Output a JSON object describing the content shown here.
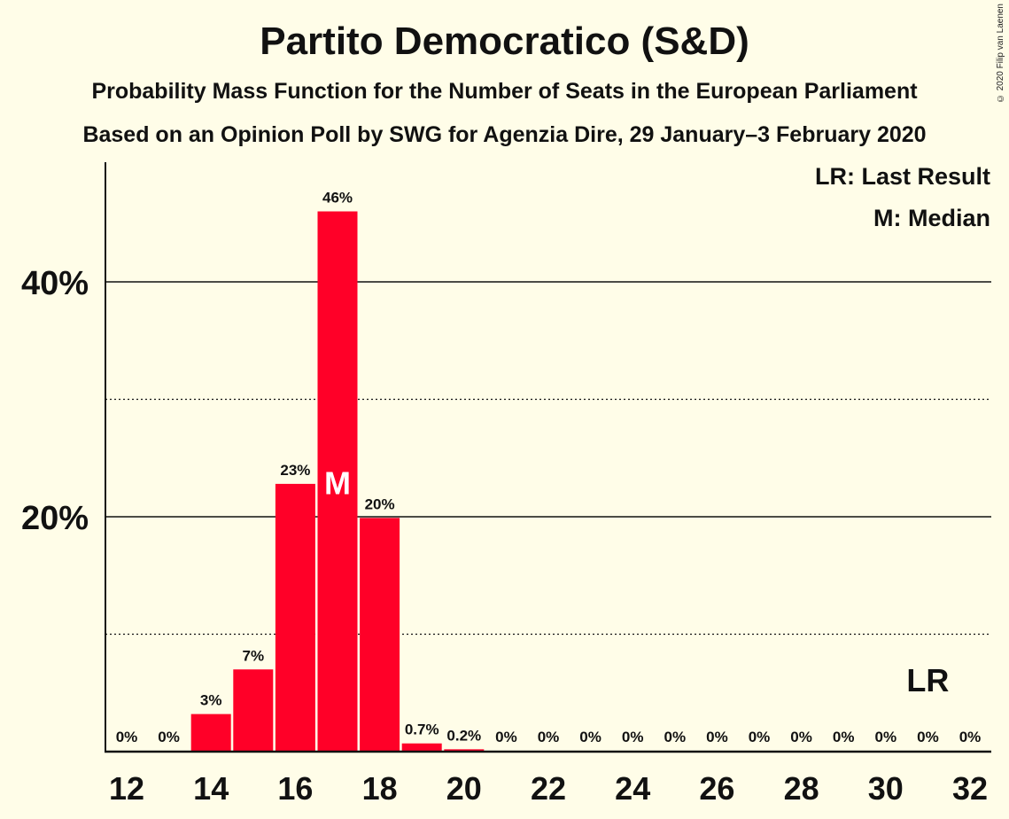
{
  "title": "Partito Democratico (S&D)",
  "subtitle1": "Probability Mass Function for the Number of Seats in the European Parliament",
  "subtitle2": "Based on an Opinion Poll by SWG for Agenzia Dire, 29 January–3 February 2020",
  "copyright": "© 2020 Filip van Laenen",
  "legend": {
    "last_result": "LR: Last Result",
    "median": "M: Median"
  },
  "colors": {
    "bar": "#FF0028",
    "background": "#FFFDE8",
    "axis": "#111111"
  },
  "chart_data": {
    "type": "bar",
    "x": [
      12,
      13,
      14,
      15,
      16,
      17,
      18,
      19,
      20,
      21,
      22,
      23,
      24,
      25,
      26,
      27,
      28,
      29,
      30,
      31,
      32
    ],
    "values": [
      0,
      0,
      3.2,
      7.0,
      22.8,
      46.0,
      19.9,
      0.7,
      0.2,
      0,
      0,
      0,
      0,
      0,
      0,
      0,
      0,
      0,
      0,
      0,
      0
    ],
    "data_labels": [
      "0%",
      "0%",
      "3%",
      "7%",
      "23%",
      "46%",
      "20%",
      "0.7%",
      "0.2%",
      "0%",
      "0%",
      "0%",
      "0%",
      "0%",
      "0%",
      "0%",
      "0%",
      "0%",
      "0%",
      "0%",
      "0%"
    ],
    "x_tick_labels": [
      "12",
      "14",
      "16",
      "18",
      "20",
      "22",
      "24",
      "26",
      "28",
      "30",
      "32"
    ],
    "y_ticks": [
      {
        "value": 10,
        "label": "",
        "style": "dotted"
      },
      {
        "value": 20,
        "label": "20%",
        "style": "solid"
      },
      {
        "value": 30,
        "label": "",
        "style": "dotted"
      },
      {
        "value": 40,
        "label": "40%",
        "style": "solid"
      }
    ],
    "ylim": [
      0,
      50
    ],
    "median": 17,
    "median_marker": "M",
    "last_result": 31,
    "last_result_marker": "LR"
  }
}
